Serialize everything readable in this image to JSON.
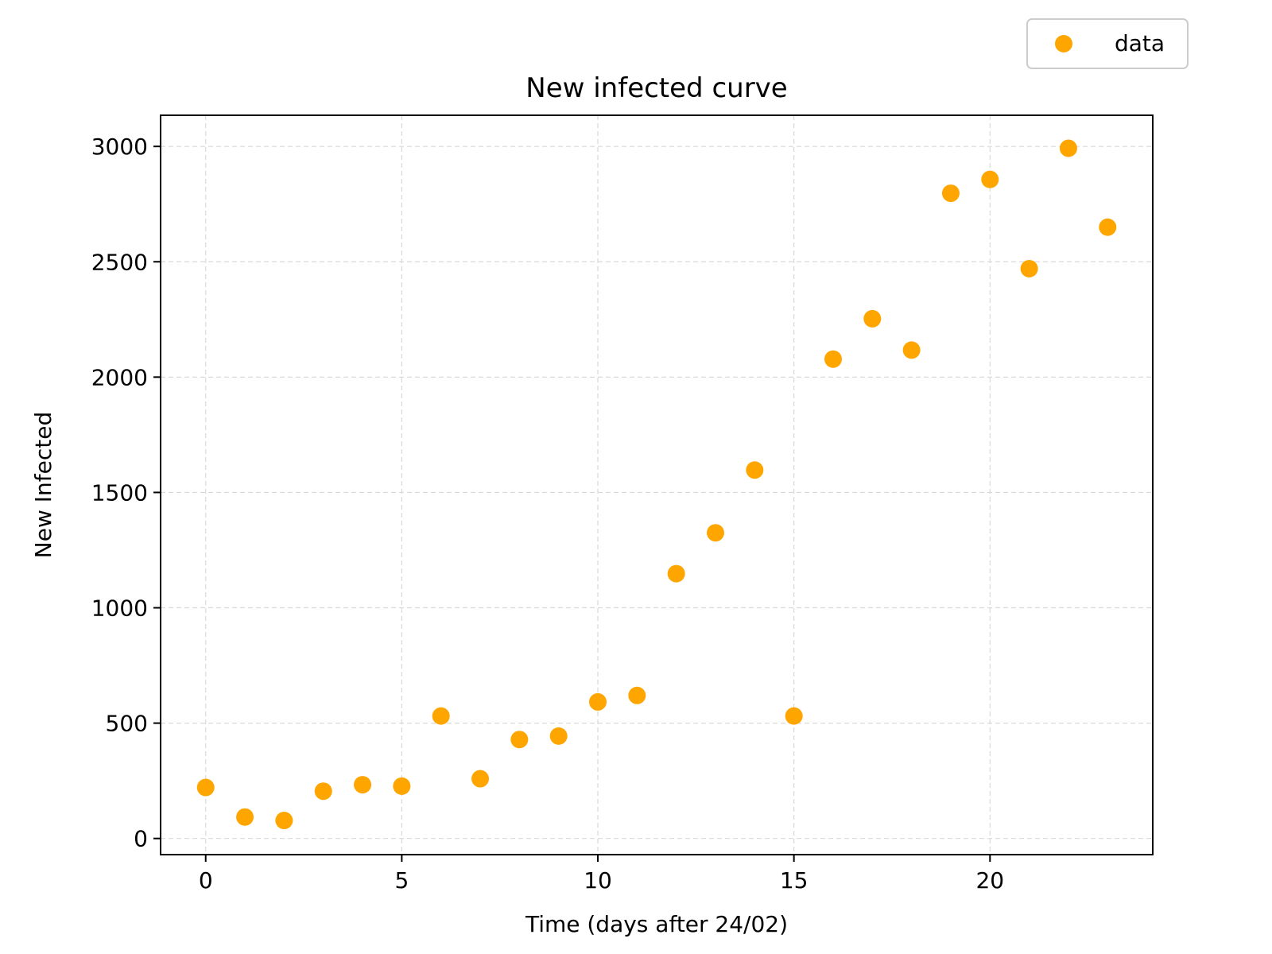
{
  "chart_data": {
    "type": "scatter",
    "title": "New infected curve",
    "xlabel": "Time (days after 24/02)",
    "ylabel": "New Infected",
    "xlim": [
      -1.15,
      24.15
    ],
    "ylim": [
      -70,
      3135
    ],
    "xticks": [
      0,
      5,
      10,
      15,
      20
    ],
    "yticks": [
      0,
      500,
      1000,
      1500,
      2000,
      2500,
      3000
    ],
    "grid": true,
    "legend_position": "top-right",
    "series": [
      {
        "name": "data",
        "color": "#FFA500",
        "x": [
          0,
          1,
          2,
          3,
          4,
          5,
          6,
          7,
          8,
          9,
          10,
          11,
          12,
          13,
          14,
          15,
          16,
          17,
          18,
          19,
          20,
          21,
          22,
          23
        ],
        "y": [
          221,
          93,
          78,
          205,
          233,
          227,
          531,
          259,
          429,
          444,
          592,
          620,
          1148,
          1325,
          1597,
          531,
          2078,
          2253,
          2117,
          2797,
          2857,
          2470,
          2992,
          2650
        ]
      }
    ]
  }
}
